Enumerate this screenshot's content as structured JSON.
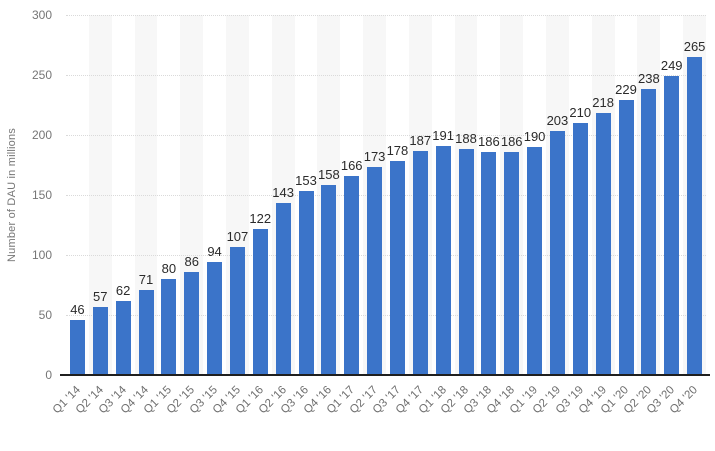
{
  "chart_data": {
    "type": "bar",
    "title": "",
    "xlabel": "",
    "ylabel": "Number of DAU in millions",
    "ylim": [
      0,
      300
    ],
    "yticks": [
      0,
      50,
      100,
      150,
      200,
      250,
      300
    ],
    "grid": true,
    "legend": "none",
    "categories": [
      "Q1 '14",
      "Q2 '14",
      "Q3 '14",
      "Q4 '14",
      "Q1 '15",
      "Q2 '15",
      "Q3 '15",
      "Q4 '15",
      "Q1 '16",
      "Q2 '16",
      "Q3 '16",
      "Q4 '16",
      "Q1 '17",
      "Q2 '17",
      "Q3 '17",
      "Q4 '17",
      "Q1 '18",
      "Q2 '18",
      "Q3 '18",
      "Q4 '18",
      "Q1 '19",
      "Q2 '19",
      "Q3 '19",
      "Q4 '19",
      "Q1 '20",
      "Q2 '20",
      "Q3 '20",
      "Q4 '20"
    ],
    "values": [
      46,
      57,
      62,
      71,
      80,
      86,
      94,
      107,
      122,
      143,
      153,
      158,
      166,
      173,
      178,
      187,
      191,
      188,
      186,
      186,
      190,
      203,
      210,
      218,
      229,
      238,
      249,
      265
    ],
    "colors": {
      "bar": "#3b74c9",
      "column_band": "#f7f7f7",
      "gridline": "#dadada",
      "baseline": "#1f1f1f",
      "value_label": "#2b2b2b",
      "tick_label": "#6e6e6e",
      "axis_title": "#767676",
      "background": "#ffffff"
    }
  }
}
